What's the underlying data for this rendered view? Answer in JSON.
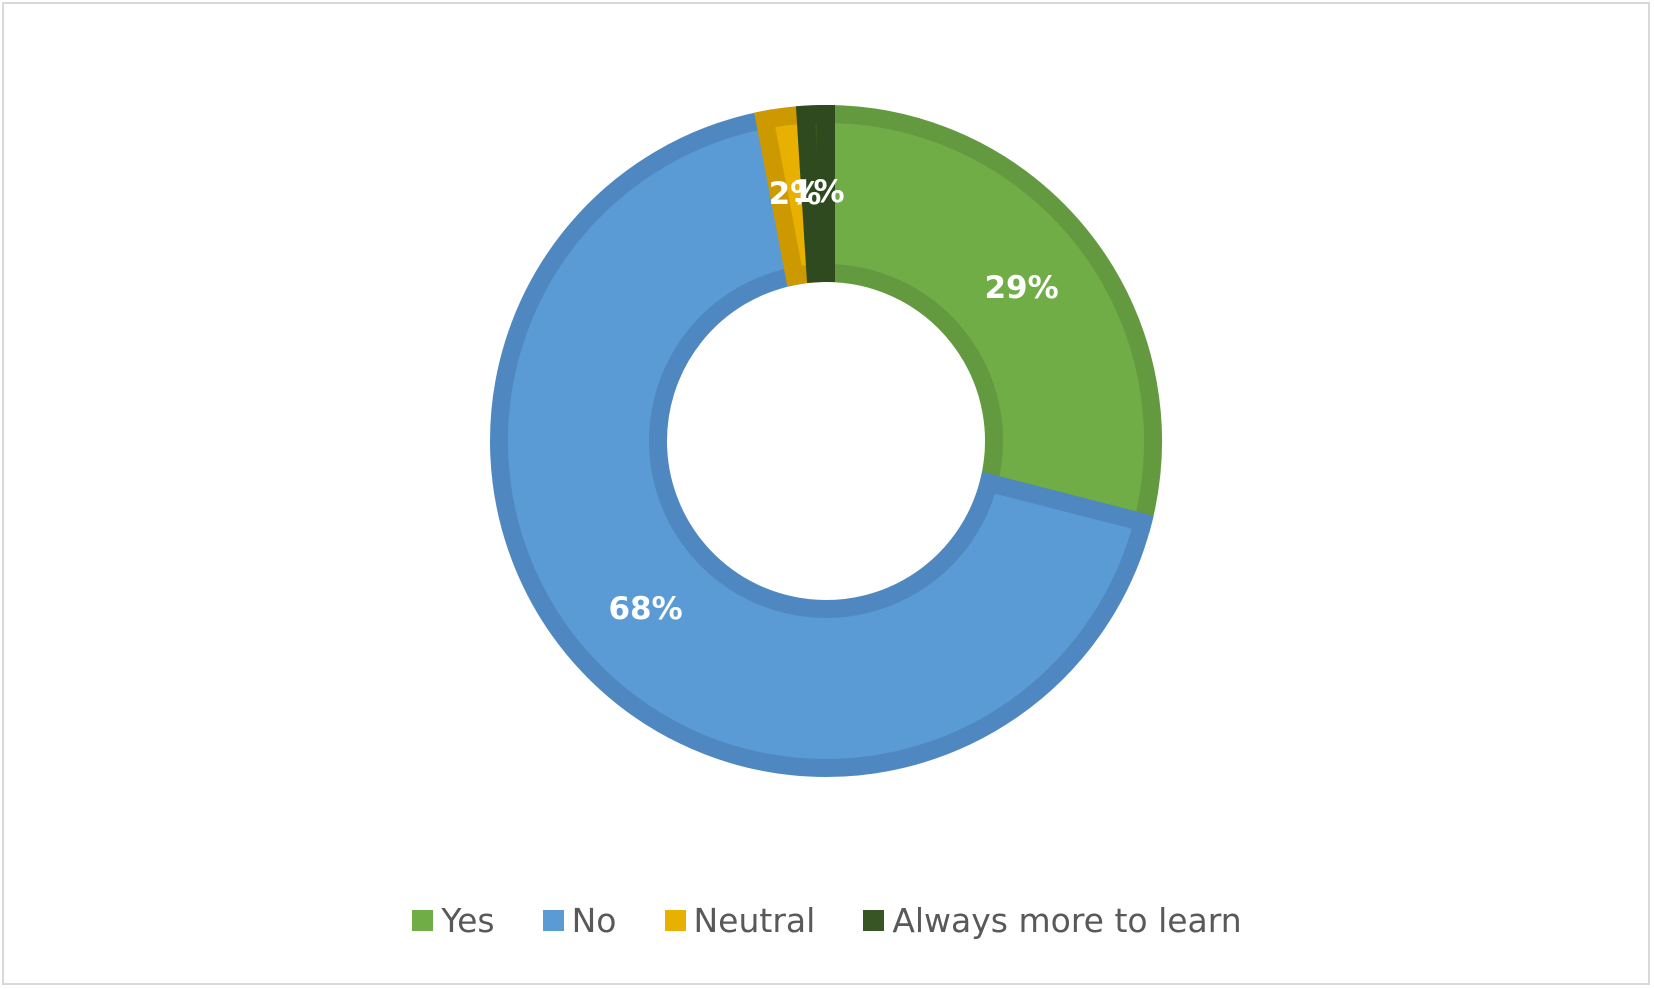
{
  "chart_data": {
    "type": "pie",
    "variant": "donut",
    "categories": [
      "Yes",
      "No",
      "Neutral",
      "Always more to learn"
    ],
    "values": [
      29,
      68,
      2,
      1
    ],
    "data_labels": [
      "29%",
      "68%",
      "2%",
      "1%"
    ],
    "colors": [
      "#70ad47",
      "#5b9bd5",
      "#e8b000",
      "#375623"
    ],
    "border_colors": [
      "#639a3f",
      "#4f88c0",
      "#cc9a00",
      "#2e4a1e"
    ],
    "legend_position": "bottom",
    "title": ""
  }
}
